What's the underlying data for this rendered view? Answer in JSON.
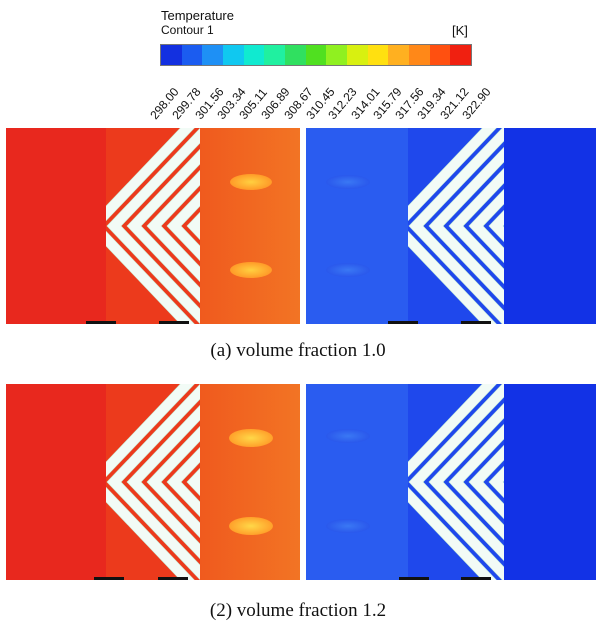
{
  "legend": {
    "title": "Temperature",
    "subtitle": "Contour 1",
    "unit": "[K]",
    "ticks": [
      "298.00",
      "299.78",
      "301.56",
      "303.34",
      "305.11",
      "306.89",
      "308.67",
      "310.45",
      "312.23",
      "314.01",
      "315.79",
      "317.56",
      "319.34",
      "321.12",
      "322.90"
    ],
    "colors": [
      "#1330e0",
      "#1b5cf0",
      "#1e90f5",
      "#10c8f0",
      "#10ead0",
      "#20f0a0",
      "#30e060",
      "#50e020",
      "#90f020",
      "#d8f010",
      "#ffe010",
      "#ffb020",
      "#ff8818",
      "#ff5010",
      "#f02010"
    ]
  },
  "captions": {
    "a": "(a) volume fraction 1.0",
    "b": "(2) volume fraction 1.2"
  },
  "palette": {
    "hot_red": "#e8281e",
    "warm_orange": "#f06420",
    "blob_yellow": "#ffb828",
    "cold_blue": "#1838e8",
    "medium_blue": "#2a60f0",
    "stripe_white": "#f2fbf6"
  }
}
